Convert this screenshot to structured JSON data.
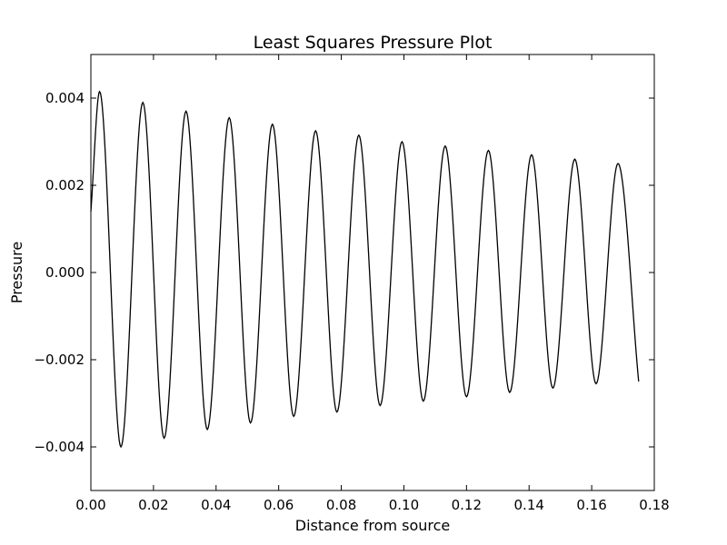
{
  "chart_data": {
    "type": "line",
    "title": "Least Squares Pressure Plot",
    "xlabel": "Distance from source",
    "ylabel": "Pressure",
    "xlim": [
      0.0,
      0.18
    ],
    "ylim": [
      -0.005,
      0.005
    ],
    "x_ticks": [
      0.0,
      0.02,
      0.04,
      0.06,
      0.08,
      0.1,
      0.12,
      0.14,
      0.16,
      0.18
    ],
    "x_tick_labels": [
      "0.00",
      "0.02",
      "0.04",
      "0.06",
      "0.08",
      "0.10",
      "0.12",
      "0.14",
      "0.16",
      "0.18"
    ],
    "y_ticks": [
      -0.004,
      -0.002,
      0.0,
      0.002,
      0.004
    ],
    "y_tick_labels": [
      "−0.004",
      "−0.002",
      "0.000",
      "0.002",
      "0.004"
    ],
    "grid": false,
    "legend": "none",
    "line_color": "#000000",
    "series": [
      {
        "x": [
          0.0,
          0.0028,
          0.0096,
          0.0166,
          0.0234,
          0.0304,
          0.0372,
          0.0442,
          0.051,
          0.058,
          0.0648,
          0.0718,
          0.0786,
          0.0856,
          0.0924,
          0.0994,
          0.1062,
          0.1132,
          0.12,
          0.127,
          0.1338,
          0.1408,
          0.1476,
          0.1546,
          0.1614,
          0.1684,
          0.175
        ],
        "y": [
          0.0014,
          0.00415,
          -0.004,
          0.0039,
          -0.0038,
          0.0037,
          -0.0036,
          0.00355,
          -0.00345,
          0.0034,
          -0.0033,
          0.00325,
          -0.0032,
          0.00315,
          -0.00305,
          0.003,
          -0.00295,
          0.0029,
          -0.00285,
          0.0028,
          -0.00275,
          0.0027,
          -0.00265,
          0.0026,
          -0.00255,
          0.0025,
          -0.0025
        ]
      }
    ]
  }
}
